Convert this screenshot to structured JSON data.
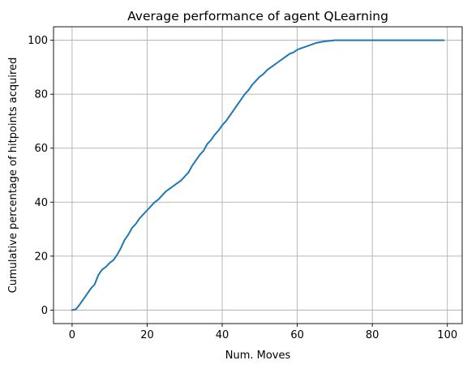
{
  "chart_data": {
    "type": "line",
    "title": "Average performance of agent QLearning",
    "xlabel": "Num. Moves",
    "ylabel": "Cumulative percentage of hitpoints acquired",
    "xlim": [
      -4.95,
      103.95
    ],
    "ylim": [
      -5,
      105
    ],
    "xticks": [
      0,
      20,
      40,
      60,
      80,
      100
    ],
    "yticks": [
      0,
      20,
      40,
      60,
      80,
      100
    ],
    "grid": true,
    "series": [
      {
        "color": "#1f77b4",
        "x": [
          0,
          1,
          2,
          3,
          4,
          5,
          6,
          7,
          8,
          9,
          10,
          11,
          12,
          13,
          14,
          15,
          16,
          17,
          18,
          19,
          20,
          21,
          22,
          23,
          24,
          25,
          26,
          27,
          28,
          29,
          30,
          31,
          32,
          33,
          34,
          35,
          36,
          37,
          38,
          39,
          40,
          41,
          42,
          43,
          44,
          45,
          46,
          47,
          48,
          49,
          50,
          51,
          52,
          53,
          54,
          55,
          56,
          57,
          58,
          59,
          60,
          61,
          62,
          63,
          64,
          65,
          66,
          67,
          68,
          69,
          70,
          71,
          72,
          73,
          74,
          75,
          76,
          77,
          78,
          79,
          80,
          81,
          82,
          83,
          84,
          85,
          86,
          87,
          88,
          89,
          90,
          91,
          92,
          93,
          94,
          95,
          96,
          97,
          98,
          99
        ],
        "y": [
          0,
          0.3,
          2,
          4,
          6,
          8,
          9.5,
          13,
          15,
          16,
          17.5,
          18.5,
          20.5,
          23,
          26,
          28,
          30.5,
          32,
          34,
          35.5,
          37,
          38.5,
          40,
          41,
          42.5,
          44,
          45,
          46,
          47,
          48,
          49.5,
          51,
          53.5,
          55.5,
          57.5,
          59,
          61.5,
          63,
          65,
          66.5,
          68.5,
          70,
          72,
          74,
          76,
          78,
          80,
          81.5,
          83.5,
          85,
          86.5,
          87.5,
          89,
          90,
          91,
          92,
          93,
          94,
          95,
          95.5,
          96.5,
          97,
          97.5,
          98,
          98.5,
          99,
          99.3,
          99.5,
          99.7,
          99.8,
          100,
          100,
          100,
          100,
          100,
          100,
          100,
          100,
          100,
          100,
          100,
          100,
          100,
          100,
          100,
          100,
          100,
          100,
          100,
          100,
          100,
          100,
          100,
          100,
          100,
          100,
          100,
          100,
          100,
          100
        ]
      }
    ]
  }
}
